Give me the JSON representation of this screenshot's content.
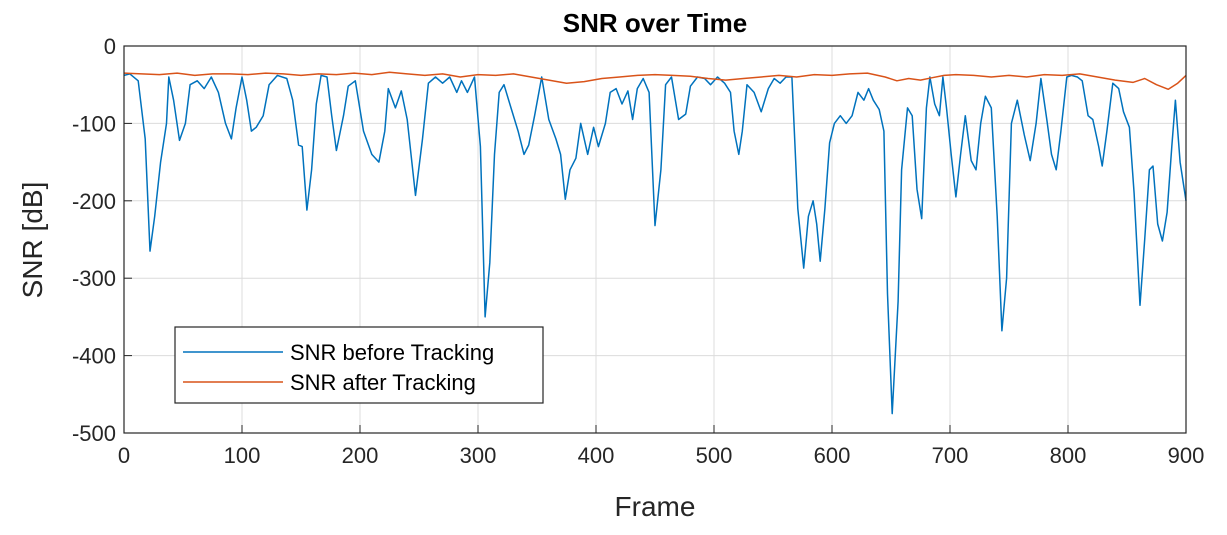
{
  "chart_data": {
    "type": "line",
    "title": "SNR over Time",
    "xlabel": "Frame",
    "ylabel": "SNR [dB]",
    "xlim": [
      0,
      900
    ],
    "ylim": [
      -500,
      0
    ],
    "xticks": [
      0,
      100,
      200,
      300,
      400,
      500,
      600,
      700,
      800,
      900
    ],
    "yticks": [
      0,
      -100,
      -200,
      -300,
      -400,
      -500
    ],
    "grid": true,
    "legend_position": "bottom-left",
    "series": [
      {
        "name": "SNR before Tracking",
        "color": "#0072BD",
        "points": [
          [
            0,
            -38
          ],
          [
            5,
            -36
          ],
          [
            12,
            -45
          ],
          [
            18,
            -120
          ],
          [
            22,
            -265
          ],
          [
            26,
            -220
          ],
          [
            31,
            -150
          ],
          [
            36,
            -100
          ],
          [
            38,
            -40
          ],
          [
            42,
            -70
          ],
          [
            47,
            -122
          ],
          [
            52,
            -100
          ],
          [
            56,
            -50
          ],
          [
            62,
            -45
          ],
          [
            68,
            -55
          ],
          [
            74,
            -40
          ],
          [
            80,
            -60
          ],
          [
            86,
            -100
          ],
          [
            91,
            -120
          ],
          [
            95,
            -80
          ],
          [
            100,
            -40
          ],
          [
            104,
            -70
          ],
          [
            108,
            -110
          ],
          [
            112,
            -105
          ],
          [
            118,
            -90
          ],
          [
            123,
            -50
          ],
          [
            130,
            -38
          ],
          [
            138,
            -42
          ],
          [
            143,
            -70
          ],
          [
            148,
            -128
          ],
          [
            151,
            -130
          ],
          [
            155,
            -212
          ],
          [
            159,
            -160
          ],
          [
            163,
            -75
          ],
          [
            167,
            -38
          ],
          [
            172,
            -40
          ],
          [
            176,
            -90
          ],
          [
            180,
            -135
          ],
          [
            186,
            -90
          ],
          [
            190,
            -52
          ],
          [
            196,
            -45
          ],
          [
            203,
            -110
          ],
          [
            210,
            -140
          ],
          [
            216,
            -150
          ],
          [
            221,
            -110
          ],
          [
            224,
            -55
          ],
          [
            230,
            -80
          ],
          [
            235,
            -58
          ],
          [
            240,
            -95
          ],
          [
            247,
            -193
          ],
          [
            253,
            -120
          ],
          [
            258,
            -48
          ],
          [
            264,
            -40
          ],
          [
            270,
            -48
          ],
          [
            276,
            -40
          ],
          [
            282,
            -60
          ],
          [
            286,
            -45
          ],
          [
            291,
            -60
          ],
          [
            297,
            -40
          ],
          [
            302,
            -130
          ],
          [
            306,
            -350
          ],
          [
            310,
            -280
          ],
          [
            314,
            -140
          ],
          [
            318,
            -60
          ],
          [
            322,
            -50
          ],
          [
            328,
            -80
          ],
          [
            334,
            -110
          ],
          [
            339,
            -140
          ],
          [
            343,
            -128
          ],
          [
            348,
            -90
          ],
          [
            354,
            -40
          ],
          [
            360,
            -95
          ],
          [
            366,
            -120
          ],
          [
            370,
            -140
          ],
          [
            374,
            -198
          ],
          [
            378,
            -160
          ],
          [
            383,
            -145
          ],
          [
            387,
            -100
          ],
          [
            393,
            -140
          ],
          [
            398,
            -105
          ],
          [
            402,
            -130
          ],
          [
            408,
            -100
          ],
          [
            412,
            -60
          ],
          [
            417,
            -55
          ],
          [
            422,
            -75
          ],
          [
            427,
            -58
          ],
          [
            431,
            -95
          ],
          [
            435,
            -55
          ],
          [
            440,
            -42
          ],
          [
            445,
            -60
          ],
          [
            450,
            -232
          ],
          [
            455,
            -160
          ],
          [
            459,
            -50
          ],
          [
            464,
            -40
          ],
          [
            470,
            -95
          ],
          [
            476,
            -88
          ],
          [
            480,
            -52
          ],
          [
            486,
            -40
          ],
          [
            492,
            -42
          ],
          [
            497,
            -50
          ],
          [
            503,
            -40
          ],
          [
            509,
            -48
          ],
          [
            514,
            -60
          ],
          [
            517,
            -110
          ],
          [
            521,
            -140
          ],
          [
            524,
            -110
          ],
          [
            528,
            -50
          ],
          [
            534,
            -60
          ],
          [
            540,
            -85
          ],
          [
            546,
            -55
          ],
          [
            551,
            -42
          ],
          [
            556,
            -48
          ],
          [
            561,
            -40
          ],
          [
            566,
            -40
          ],
          [
            571,
            -210
          ],
          [
            576,
            -287
          ],
          [
            580,
            -220
          ],
          [
            584,
            -200
          ],
          [
            587,
            -230
          ],
          [
            590,
            -278
          ],
          [
            594,
            -210
          ],
          [
            598,
            -125
          ],
          [
            602,
            -100
          ],
          [
            607,
            -90
          ],
          [
            612,
            -100
          ],
          [
            617,
            -90
          ],
          [
            622,
            -60
          ],
          [
            627,
            -70
          ],
          [
            631,
            -55
          ],
          [
            635,
            -70
          ],
          [
            640,
            -82
          ],
          [
            644,
            -110
          ],
          [
            647,
            -320
          ],
          [
            651,
            -475
          ],
          [
            656,
            -330
          ],
          [
            659,
            -160
          ],
          [
            664,
            -80
          ],
          [
            668,
            -90
          ],
          [
            672,
            -185
          ],
          [
            676,
            -223
          ],
          [
            680,
            -80
          ],
          [
            683,
            -40
          ],
          [
            687,
            -75
          ],
          [
            691,
            -90
          ],
          [
            694,
            -40
          ],
          [
            697,
            -80
          ],
          [
            701,
            -140
          ],
          [
            705,
            -195
          ],
          [
            709,
            -140
          ],
          [
            713,
            -90
          ],
          [
            718,
            -148
          ],
          [
            722,
            -160
          ],
          [
            726,
            -100
          ],
          [
            730,
            -65
          ],
          [
            735,
            -80
          ],
          [
            740,
            -220
          ],
          [
            744,
            -368
          ],
          [
            748,
            -300
          ],
          [
            752,
            -100
          ],
          [
            757,
            -70
          ],
          [
            763,
            -115
          ],
          [
            768,
            -148
          ],
          [
            773,
            -100
          ],
          [
            777,
            -42
          ],
          [
            782,
            -95
          ],
          [
            786,
            -140
          ],
          [
            790,
            -160
          ],
          [
            794,
            -110
          ],
          [
            799,
            -40
          ],
          [
            803,
            -38
          ],
          [
            808,
            -40
          ],
          [
            812,
            -45
          ],
          [
            817,
            -90
          ],
          [
            821,
            -95
          ],
          [
            826,
            -130
          ],
          [
            829,
            -155
          ],
          [
            833,
            -110
          ],
          [
            838,
            -48
          ],
          [
            843,
            -55
          ],
          [
            847,
            -85
          ],
          [
            852,
            -105
          ],
          [
            856,
            -190
          ],
          [
            861,
            -335
          ],
          [
            865,
            -250
          ],
          [
            869,
            -160
          ],
          [
            872,
            -155
          ],
          [
            876,
            -230
          ],
          [
            880,
            -252
          ],
          [
            884,
            -215
          ],
          [
            888,
            -130
          ],
          [
            891,
            -70
          ],
          [
            895,
            -150
          ],
          [
            900,
            -200
          ]
        ]
      },
      {
        "name": "SNR after Tracking",
        "color": "#D95319",
        "points": [
          [
            0,
            -35
          ],
          [
            15,
            -36
          ],
          [
            30,
            -37
          ],
          [
            45,
            -35
          ],
          [
            60,
            -38
          ],
          [
            75,
            -36
          ],
          [
            90,
            -36
          ],
          [
            105,
            -37
          ],
          [
            120,
            -35
          ],
          [
            135,
            -36
          ],
          [
            150,
            -38
          ],
          [
            165,
            -36
          ],
          [
            180,
            -37
          ],
          [
            195,
            -35
          ],
          [
            210,
            -37
          ],
          [
            225,
            -34
          ],
          [
            240,
            -36
          ],
          [
            255,
            -38
          ],
          [
            270,
            -36
          ],
          [
            285,
            -40
          ],
          [
            300,
            -37
          ],
          [
            315,
            -38
          ],
          [
            330,
            -36
          ],
          [
            345,
            -40
          ],
          [
            360,
            -44
          ],
          [
            375,
            -48
          ],
          [
            390,
            -46
          ],
          [
            405,
            -42
          ],
          [
            420,
            -40
          ],
          [
            435,
            -38
          ],
          [
            450,
            -37
          ],
          [
            465,
            -38
          ],
          [
            480,
            -39
          ],
          [
            495,
            -42
          ],
          [
            510,
            -44
          ],
          [
            525,
            -42
          ],
          [
            540,
            -40
          ],
          [
            555,
            -38
          ],
          [
            570,
            -40
          ],
          [
            585,
            -37
          ],
          [
            600,
            -38
          ],
          [
            615,
            -36
          ],
          [
            630,
            -35
          ],
          [
            645,
            -40
          ],
          [
            655,
            -45
          ],
          [
            665,
            -42
          ],
          [
            675,
            -44
          ],
          [
            685,
            -41
          ],
          [
            695,
            -38
          ],
          [
            705,
            -37
          ],
          [
            720,
            -38
          ],
          [
            735,
            -40
          ],
          [
            750,
            -38
          ],
          [
            765,
            -40
          ],
          [
            780,
            -37
          ],
          [
            795,
            -38
          ],
          [
            810,
            -36
          ],
          [
            825,
            -40
          ],
          [
            840,
            -44
          ],
          [
            855,
            -47
          ],
          [
            865,
            -42
          ],
          [
            875,
            -50
          ],
          [
            885,
            -56
          ],
          [
            893,
            -48
          ],
          [
            900,
            -38
          ]
        ]
      }
    ]
  }
}
